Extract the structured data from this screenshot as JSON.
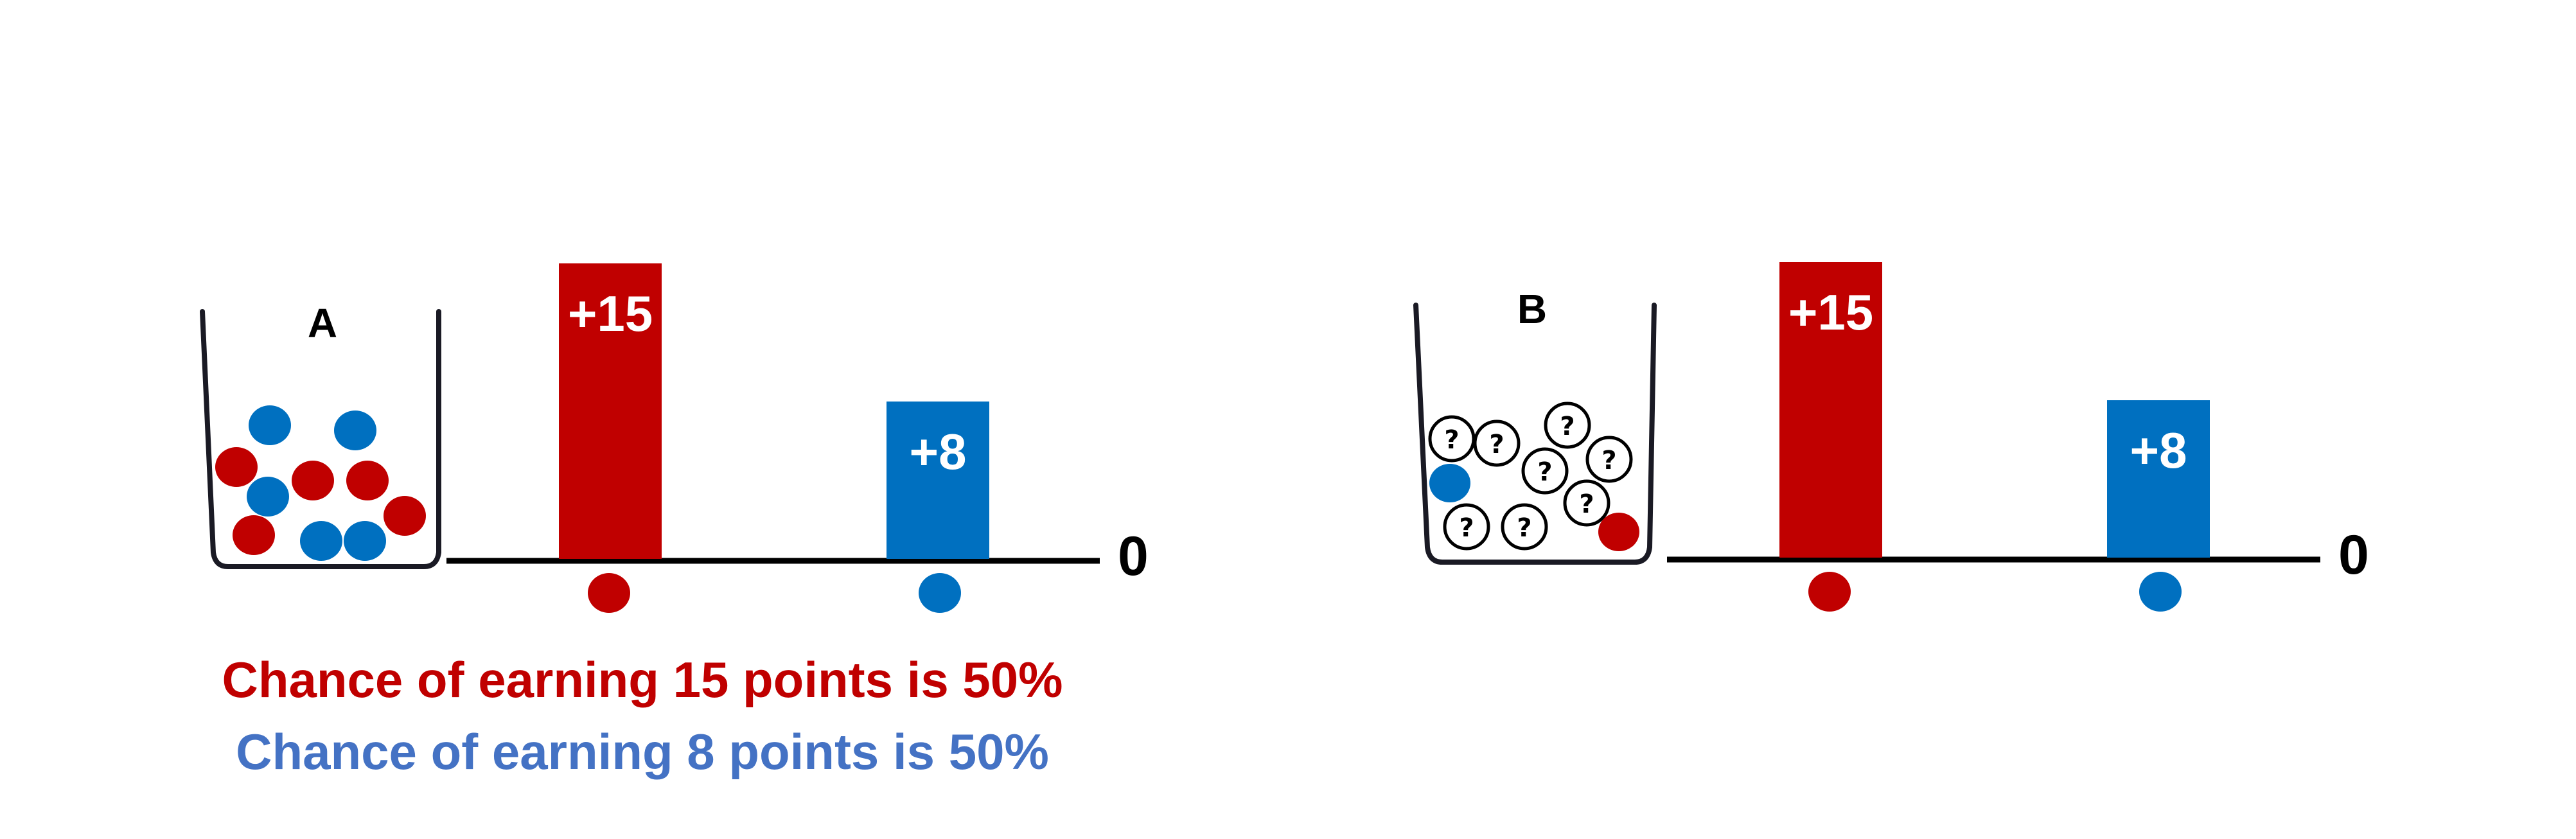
{
  "colors": {
    "red": "#C00000",
    "blue": "#0070C0",
    "blue_text": "#4472C4",
    "axis": "#000000",
    "cup": "#1a1a24"
  },
  "panels": [
    {
      "urn_label": "A",
      "high_value_label": "+15",
      "low_value_label": "+8",
      "high_value": 15,
      "low_value": 8,
      "zero_label": "0",
      "high_color": "red",
      "low_color": "blue",
      "urn_contents": {
        "red": 5,
        "blue": 5,
        "unknown": 0
      },
      "chance_lines": [
        {
          "text": "Chance of earning 15 points is 50%",
          "color": "red"
        },
        {
          "text": "Chance of earning 8 points is 50%",
          "color": "blue_text"
        }
      ]
    },
    {
      "urn_label": "B",
      "high_value_label": "+15",
      "low_value_label": "+8",
      "high_value": 15,
      "low_value": 8,
      "zero_label": "0",
      "high_color": "red",
      "low_color": "blue",
      "urn_contents": {
        "red": 1,
        "blue": 1,
        "unknown": 8
      },
      "unknown_symbol": "?"
    }
  ]
}
